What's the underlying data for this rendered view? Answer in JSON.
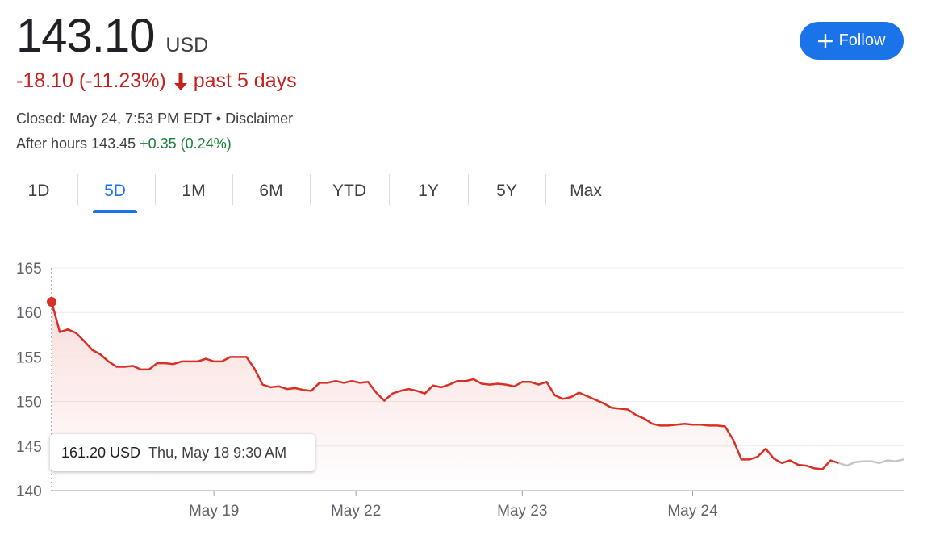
{
  "header": {
    "price": "143.10",
    "currency": "USD",
    "change": "-18.10 (-11.23%)",
    "change_period": "past 5 days",
    "closed_text": "Closed: May 24, 7:53 PM EDT",
    "bullet": " • ",
    "disclaimer": "Disclaimer",
    "after_hours_label": "After hours 143.45",
    "after_hours_change": "+0.35 (0.24%)"
  },
  "follow_button": {
    "label": "Follow",
    "icon": "plus-icon"
  },
  "tabs": [
    {
      "label": "1D",
      "active": false
    },
    {
      "label": "5D",
      "active": true
    },
    {
      "label": "1M",
      "active": false
    },
    {
      "label": "6M",
      "active": false
    },
    {
      "label": "YTD",
      "active": false
    },
    {
      "label": "1Y",
      "active": false
    },
    {
      "label": "5Y",
      "active": false
    },
    {
      "label": "Max",
      "active": false
    }
  ],
  "tooltip": {
    "value": "161.20 USD",
    "date": "Thu, May 18 9:30 AM"
  },
  "colors": {
    "line": "#d93025",
    "after_hours_line": "#c6c6c6",
    "accent": "#1a73e8",
    "negative": "#c5221f",
    "positive": "#188038"
  },
  "chart_data": {
    "type": "line",
    "ylim": [
      140,
      165
    ],
    "y_ticks": [
      "165",
      "160",
      "155",
      "150",
      "145",
      "140"
    ],
    "x_labels": [
      "May 19",
      "May 22",
      "May 23",
      "May 24"
    ],
    "grid": "horizontal",
    "series": [
      {
        "values": [
          161.2,
          157.8,
          158.1,
          157.7,
          156.8,
          155.8,
          155.3,
          154.5,
          153.9,
          153.9,
          154.0,
          153.6,
          153.6,
          154.3,
          154.3,
          154.2,
          154.5,
          154.5,
          154.5,
          154.8,
          154.5,
          154.5,
          155.0,
          155.0,
          155.0,
          153.7,
          151.9,
          151.6,
          151.7,
          151.4,
          151.5,
          151.3,
          151.2,
          152.1,
          152.1,
          152.3,
          152.1,
          152.3,
          152.1,
          152.2,
          151.0,
          150.1,
          150.9,
          151.2,
          151.4,
          151.2,
          150.9,
          151.8,
          151.6,
          151.9,
          152.3,
          152.3,
          152.5,
          152.0,
          151.9,
          152.0,
          151.9,
          151.7,
          152.2,
          152.2,
          151.9,
          152.2,
          150.7,
          150.3,
          150.5,
          151.0,
          150.6,
          150.2,
          149.8,
          149.3,
          149.2,
          149.1,
          148.5,
          148.1,
          147.5,
          147.3,
          147.3,
          147.4,
          147.5,
          147.4,
          147.4,
          147.3,
          147.3,
          147.2,
          145.7,
          143.5,
          143.5,
          143.8,
          144.7,
          143.6,
          143.1,
          143.4,
          142.9,
          142.8,
          142.5,
          142.4,
          143.4,
          143.1
        ]
      },
      {
        "values": [
          143.1,
          142.8,
          143.2,
          143.3,
          143.3,
          143.1,
          143.4,
          143.3,
          143.5
        ]
      }
    ]
  }
}
